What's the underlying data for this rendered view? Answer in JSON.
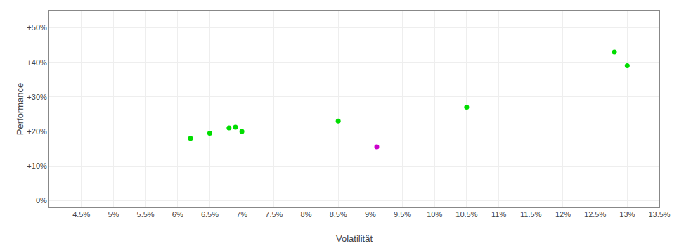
{
  "chart_data": {
    "type": "scatter",
    "x_label": "Volatilität",
    "y_label": "Performance",
    "series": [
      {
        "color": "#00dd00",
        "x": [
          0.062,
          0.065,
          0.068,
          0.069,
          0.07,
          0.085,
          0.105,
          0.128,
          0.13
        ],
        "values": [
          0.18,
          0.195,
          0.21,
          0.212,
          0.2,
          0.23,
          0.27,
          0.43,
          0.39
        ]
      },
      {
        "color": "#cc00cc",
        "x": [
          0.091
        ],
        "values": [
          0.155
        ]
      }
    ],
    "xlim": [
      0.04,
      0.135
    ],
    "ylim": [
      -0.02,
      0.55
    ],
    "xticks": [
      {
        "value": 0.045,
        "label": "4.5%"
      },
      {
        "value": 0.05,
        "label": "5%"
      },
      {
        "value": 0.055,
        "label": "5.5%"
      },
      {
        "value": 0.06,
        "label": "6%"
      },
      {
        "value": 0.065,
        "label": "6.5%"
      },
      {
        "value": 0.07,
        "label": "7%"
      },
      {
        "value": 0.075,
        "label": "7.5%"
      },
      {
        "value": 0.08,
        "label": "8%"
      },
      {
        "value": 0.085,
        "label": "8.5%"
      },
      {
        "value": 0.09,
        "label": "9%"
      },
      {
        "value": 0.095,
        "label": "9.5%"
      },
      {
        "value": 0.1,
        "label": "10%"
      },
      {
        "value": 0.105,
        "label": "10.5%"
      },
      {
        "value": 0.11,
        "label": "11%"
      },
      {
        "value": 0.115,
        "label": "11.5%"
      },
      {
        "value": 0.12,
        "label": "12%"
      },
      {
        "value": 0.125,
        "label": "12.5%"
      },
      {
        "value": 0.13,
        "label": "13%"
      },
      {
        "value": 0.135,
        "label": "13.5%"
      }
    ],
    "yticks": [
      {
        "value": 0.0,
        "label": "0%"
      },
      {
        "value": 0.1,
        "label": "+10%"
      },
      {
        "value": 0.2,
        "label": "+20%"
      },
      {
        "value": 0.3,
        "label": "+30%"
      },
      {
        "value": 0.4,
        "label": "+40%"
      },
      {
        "value": 0.5,
        "label": "+50%"
      }
    ],
    "grid": true
  }
}
